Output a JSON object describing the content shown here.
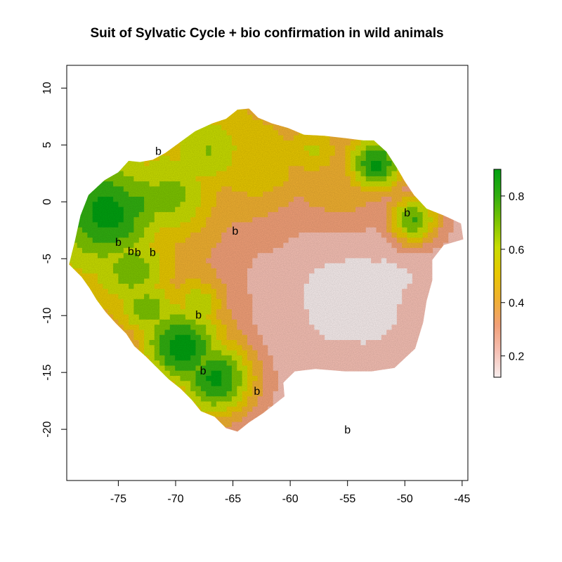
{
  "title": "Suit of Sylvatic Cycle + bio confirmation in wild animals",
  "colors": {
    "ramp": [
      "#f8eeee",
      "#f6c0b4",
      "#f2a078",
      "#f0b030",
      "#e8c800",
      "#c8dc00",
      "#7cc400",
      "#30ae10",
      "#00a010"
    ],
    "no_data": "#ffffff"
  },
  "chart_data": {
    "type": "heatmap",
    "title": "Suit of Sylvatic Cycle + bio confirmation in wild animals",
    "xlabel": "",
    "ylabel": "",
    "xlim": [
      -79.5,
      -44.5
    ],
    "ylim": [
      -24.5,
      12
    ],
    "x_ticks": [
      -75,
      -70,
      -65,
      -60,
      -55,
      -50,
      -45
    ],
    "x_tick_labels": [
      "-75",
      "-70",
      "-65",
      "-60",
      "-55",
      "-50",
      "-45"
    ],
    "y_ticks": [
      10,
      5,
      0,
      -5,
      -10,
      -15,
      -20
    ],
    "y_tick_labels": [
      "10",
      "5",
      "0",
      "-5",
      "-10",
      "-15",
      "-20"
    ],
    "legend": {
      "position": "right",
      "min": 0.12,
      "max": 0.9,
      "ticks": [
        0.8,
        0.6,
        0.4,
        0.2
      ],
      "tick_labels": [
        "0.8",
        "0.6",
        "0.4",
        "0.2"
      ]
    },
    "grid": false,
    "markers": [
      {
        "label": "b",
        "lon": -71.5,
        "lat": 4.5
      },
      {
        "label": "b",
        "lon": -75.0,
        "lat": -3.5
      },
      {
        "label": "b",
        "lon": -73.9,
        "lat": -4.3
      },
      {
        "label": "b",
        "lon": -73.3,
        "lat": -4.4
      },
      {
        "label": "b",
        "lon": -72.0,
        "lat": -4.4
      },
      {
        "label": "b",
        "lon": -64.8,
        "lat": -2.5
      },
      {
        "label": "b",
        "lon": -49.8,
        "lat": -0.9
      },
      {
        "label": "b",
        "lon": -68.0,
        "lat": -9.9
      },
      {
        "label": "b",
        "lon": -67.6,
        "lat": -14.8
      },
      {
        "label": "b",
        "lon": -62.9,
        "lat": -16.6
      },
      {
        "label": "b",
        "lon": -55.0,
        "lat": -20.0
      }
    ]
  }
}
